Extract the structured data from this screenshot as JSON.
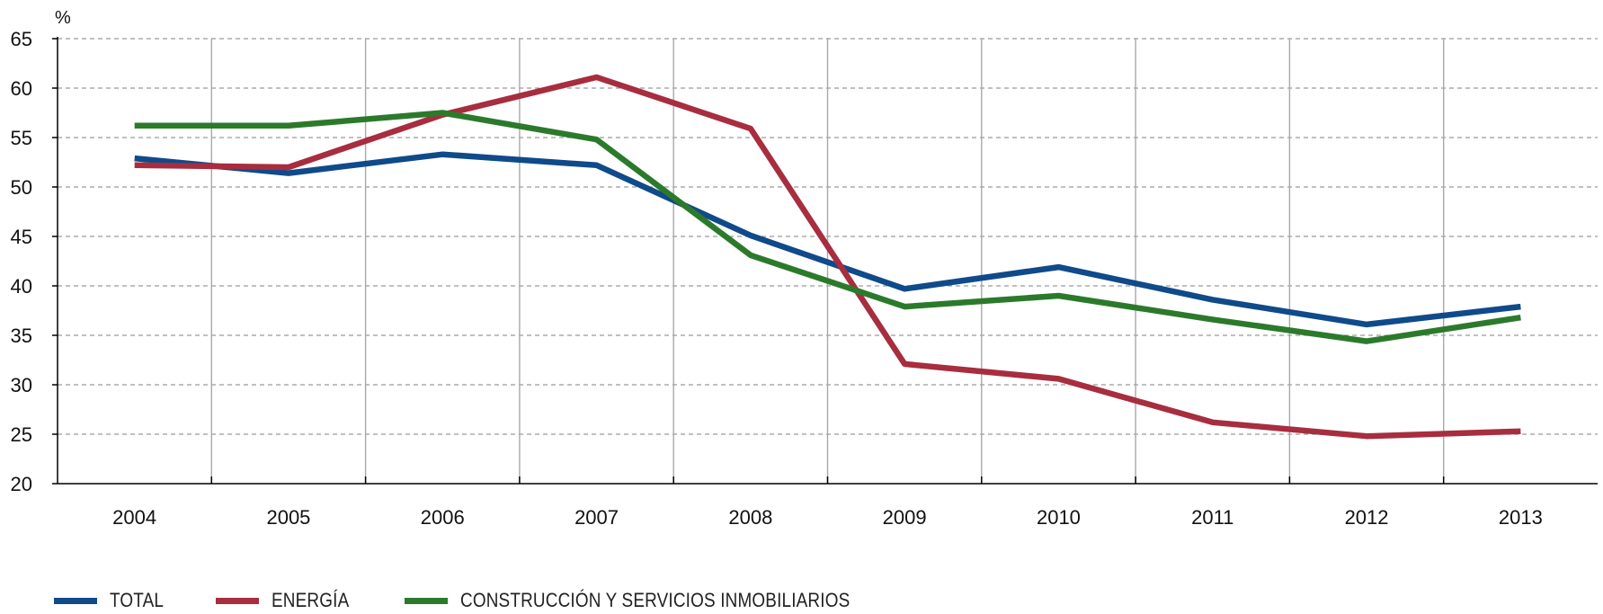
{
  "chart_data": {
    "type": "line",
    "y_unit_label": "%",
    "categories": [
      "2004",
      "2005",
      "2006",
      "2007",
      "2008",
      "2009",
      "2010",
      "2011",
      "2012",
      "2013"
    ],
    "ylim": [
      20,
      65
    ],
    "yticks": [
      20,
      25,
      30,
      35,
      40,
      45,
      50,
      55,
      60,
      65
    ],
    "grid": true,
    "legend_position": "bottom-left",
    "series": [
      {
        "name": "TOTAL",
        "color": "#0f4a8a",
        "values": [
          52.9,
          51.4,
          53.3,
          52.2,
          45.1,
          39.7,
          41.9,
          38.6,
          36.1,
          37.9
        ]
      },
      {
        "name": "ENERGÍA",
        "color": "#a72d3f",
        "values": [
          52.2,
          52.0,
          57.3,
          61.1,
          55.9,
          32.1,
          30.6,
          26.2,
          24.8,
          25.3
        ]
      },
      {
        "name": "CONSTRUCCIÓN Y SERVICIOS INMOBILIARIOS",
        "color": "#2b7a2b",
        "values": [
          56.2,
          56.2,
          57.5,
          54.8,
          43.1,
          37.9,
          39.0,
          36.6,
          34.4,
          36.8
        ]
      }
    ]
  }
}
